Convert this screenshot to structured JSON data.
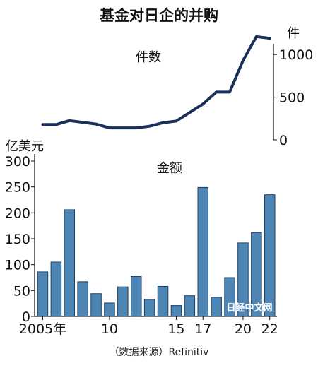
{
  "title": "基金对日企的并购",
  "source": "（数据来源）Refinitiv",
  "watermark": "日经中文网",
  "colors": {
    "line": "#1b2f5a",
    "bar": "#4d86b4",
    "bar_edge": "#1f3f63",
    "text": "#111111"
  },
  "chart_data": [
    {
      "type": "line",
      "label": "件数",
      "unit": "件",
      "x": [
        2005,
        2006,
        2007,
        2008,
        2009,
        2010,
        2011,
        2012,
        2013,
        2014,
        2015,
        2016,
        2017,
        2018,
        2019,
        2020,
        2021,
        2022
      ],
      "values": [
        180,
        180,
        225,
        205,
        185,
        140,
        140,
        140,
        160,
        200,
        220,
        320,
        420,
        560,
        560,
        930,
        1210,
        1190
      ],
      "ylim": [
        0,
        1250
      ],
      "yticks": [
        0,
        500,
        1000
      ],
      "axis_position": "right"
    },
    {
      "type": "bar",
      "label": "金额",
      "unit": "亿美元",
      "x": [
        2005,
        2006,
        2007,
        2008,
        2009,
        2010,
        2011,
        2012,
        2013,
        2014,
        2015,
        2016,
        2017,
        2018,
        2019,
        2020,
        2021,
        2022
      ],
      "values": [
        86,
        105,
        206,
        67,
        44,
        26,
        57,
        77,
        33,
        58,
        21,
        40,
        249,
        37,
        75,
        142,
        162,
        235
      ],
      "ylim": [
        0,
        300
      ],
      "yticks": [
        0,
        50,
        100,
        150,
        200,
        250,
        300
      ],
      "xtick_labels": [
        {
          "x": 2005,
          "text": "2005年"
        },
        {
          "x": 2010,
          "text": "10"
        },
        {
          "x": 2015,
          "text": "15"
        },
        {
          "x": 2017,
          "text": "17"
        },
        {
          "x": 2020,
          "text": "20"
        },
        {
          "x": 2022,
          "text": "22"
        }
      ],
      "axis_position": "left"
    }
  ]
}
